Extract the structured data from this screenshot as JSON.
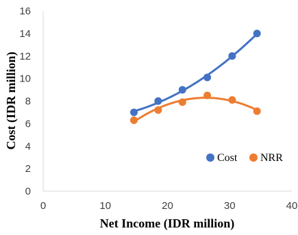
{
  "chart_data": {
    "type": "scatter",
    "title": "",
    "xlabel": "Net Income (IDR million)",
    "ylabel": "Cost (IDR million)",
    "xlim": [
      0,
      40
    ],
    "ylim": [
      0,
      16
    ],
    "xticks": [
      "0",
      "10",
      "20",
      "30",
      "40"
    ],
    "yticks": [
      "0",
      "2",
      "4",
      "6",
      "8",
      "10",
      "12",
      "14",
      "16"
    ],
    "grid": false,
    "legend_position": "bottom-right",
    "series": [
      {
        "name": "Cost",
        "color": "#4472c4",
        "trendline": "polynomial",
        "x": [
          14.6,
          18.5,
          22.4,
          26.4,
          30.4,
          34.4
        ],
        "y": [
          7.0,
          8.0,
          9.0,
          10.1,
          12.0,
          14.0
        ]
      },
      {
        "name": "NRR",
        "color": "#ed7d31",
        "trendline": "polynomial",
        "x": [
          14.6,
          18.5,
          22.4,
          26.4,
          30.4,
          34.4
        ],
        "y": [
          6.3,
          7.2,
          7.9,
          8.5,
          8.1,
          7.1
        ]
      }
    ]
  }
}
